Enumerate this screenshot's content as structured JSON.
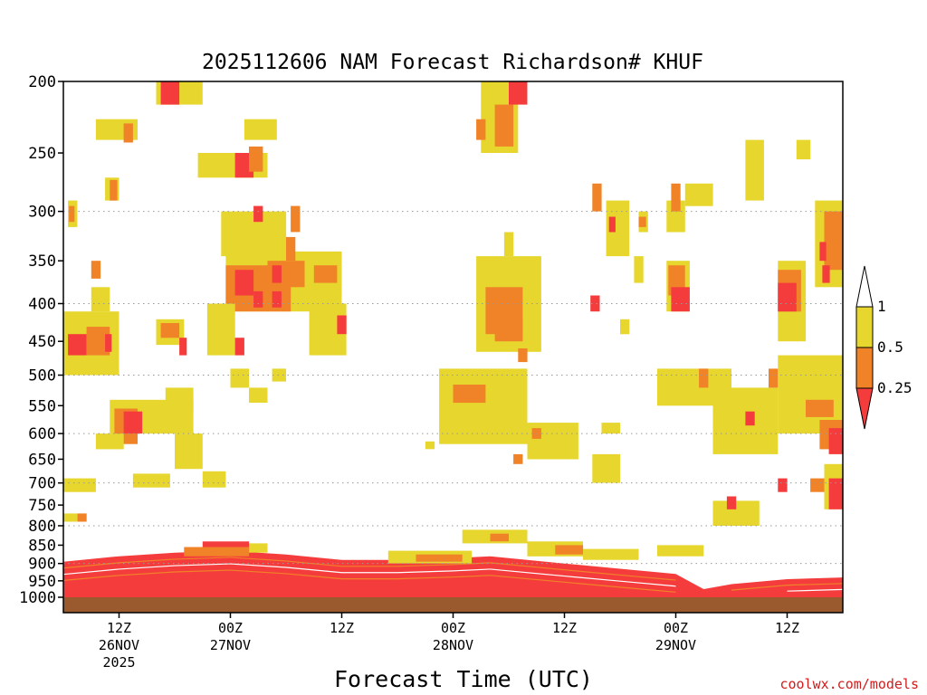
{
  "chart_data": {
    "type": "heatmap",
    "title": "2025112606 NAM Forecast Richardson# KHUF",
    "xlabel": "Forecast Time (UTC)",
    "ylabel": "",
    "credit": "coolwx.com/models",
    "y_axis": {
      "scale": "log-pressure (hPa), inverted",
      "range": [
        1000,
        200
      ],
      "ticks": [
        "200",
        "250",
        "300",
        "350",
        "400",
        "450",
        "500",
        "550",
        "600",
        "650",
        "700",
        "750",
        "800",
        "850",
        "900",
        "950",
        "1000"
      ]
    },
    "x_axis": {
      "range_hours": [
        0,
        84
      ],
      "ticks": [
        {
          "label": "12Z",
          "date": "26NOV",
          "year": "2025",
          "hour": 6
        },
        {
          "label": "00Z",
          "date": "27NOV",
          "year": "",
          "hour": 18
        },
        {
          "label": "12Z",
          "date": "",
          "year": "",
          "hour": 30
        },
        {
          "label": "00Z",
          "date": "28NOV",
          "year": "",
          "hour": 42
        },
        {
          "label": "12Z",
          "date": "",
          "year": "",
          "hour": 54
        },
        {
          "label": "00Z",
          "date": "29NOV",
          "year": "",
          "hour": 66
        },
        {
          "label": "12Z",
          "date": "",
          "year": "",
          "hour": 78
        }
      ]
    },
    "gridlines_dotted_at": [
      300,
      400,
      500,
      600,
      700,
      800,
      900
    ],
    "colorbar": {
      "labels": [
        "1",
        "0.5",
        "0.25"
      ],
      "bins": [
        {
          "range": "0.5-1",
          "color": "#e6d62e"
        },
        {
          "range": "0.25-0.5",
          "color": "#f08228"
        },
        {
          "range": "<0.25",
          "color": "#f53c3c"
        }
      ],
      "extend_high": "#ffffff",
      "extend_low": "#f53c3c"
    },
    "ground_color": "#9a5a2e",
    "colors": {
      "yellow": "#e6d62e",
      "orange": "#f08228",
      "red": "#f53c3c"
    },
    "blobs": [
      {
        "c": "y",
        "t0": 10,
        "t1": 15,
        "p0": 200,
        "p1": 215
      },
      {
        "c": "r",
        "t0": 10.5,
        "t1": 12.5,
        "p0": 200,
        "p1": 215
      },
      {
        "c": "y",
        "t0": 3.5,
        "t1": 8,
        "p0": 225,
        "p1": 240
      },
      {
        "c": "o",
        "t0": 6.5,
        "t1": 7.5,
        "p0": 228,
        "p1": 242
      },
      {
        "c": "y",
        "t0": 14.5,
        "t1": 22,
        "p0": 250,
        "p1": 270
      },
      {
        "c": "r",
        "t0": 18.5,
        "t1": 20.5,
        "p0": 250,
        "p1": 270
      },
      {
        "c": "o",
        "t0": 20,
        "t1": 21.5,
        "p0": 245,
        "p1": 265
      },
      {
        "c": "y",
        "t0": 19.5,
        "t1": 23,
        "p0": 225,
        "p1": 240
      },
      {
        "c": "y",
        "t0": 4.5,
        "t1": 6,
        "p0": 270,
        "p1": 290
      },
      {
        "c": "o",
        "t0": 5,
        "t1": 5.8,
        "p0": 272,
        "p1": 290
      },
      {
        "c": "y",
        "t0": 0.5,
        "t1": 1.5,
        "p0": 290,
        "p1": 315
      },
      {
        "c": "o",
        "t0": 0.6,
        "t1": 1.2,
        "p0": 295,
        "p1": 310
      },
      {
        "c": "y",
        "t0": 17,
        "t1": 24,
        "p0": 300,
        "p1": 345
      },
      {
        "c": "r",
        "t0": 20.5,
        "t1": 21.5,
        "p0": 295,
        "p1": 310
      },
      {
        "c": "o",
        "t0": 24.5,
        "t1": 25.5,
        "p0": 295,
        "p1": 320
      },
      {
        "c": "y",
        "t0": 17.5,
        "t1": 30,
        "p0": 340,
        "p1": 410
      },
      {
        "c": "o",
        "t0": 17.5,
        "t1": 24.5,
        "p0": 355,
        "p1": 410
      },
      {
        "c": "r",
        "t0": 18.5,
        "t1": 20.5,
        "p0": 360,
        "p1": 390
      },
      {
        "c": "o",
        "t0": 22,
        "t1": 26,
        "p0": 350,
        "p1": 380
      },
      {
        "c": "r",
        "t0": 22.5,
        "t1": 23.5,
        "p0": 355,
        "p1": 375
      },
      {
        "c": "o",
        "t0": 27,
        "t1": 29.5,
        "p0": 355,
        "p1": 375
      },
      {
        "c": "r",
        "t0": 20.5,
        "t1": 21.5,
        "p0": 385,
        "p1": 405
      },
      {
        "c": "r",
        "t0": 22.5,
        "t1": 23.5,
        "p0": 385,
        "p1": 405
      },
      {
        "c": "o",
        "t0": 24,
        "t1": 25,
        "p0": 325,
        "p1": 350
      },
      {
        "c": "y",
        "t0": 26.5,
        "t1": 30.5,
        "p0": 400,
        "p1": 470
      },
      {
        "c": "r",
        "t0": 29.5,
        "t1": 30.5,
        "p0": 415,
        "p1": 440
      },
      {
        "c": "o",
        "t0": 3,
        "t1": 4,
        "p0": 350,
        "p1": 370
      },
      {
        "c": "y",
        "t0": 3,
        "t1": 5,
        "p0": 380,
        "p1": 410
      },
      {
        "c": "y",
        "t0": 0,
        "t1": 6,
        "p0": 410,
        "p1": 500
      },
      {
        "c": "r",
        "t0": 0.5,
        "t1": 2.5,
        "p0": 440,
        "p1": 470
      },
      {
        "c": "o",
        "t0": 2.5,
        "t1": 5,
        "p0": 430,
        "p1": 470
      },
      {
        "c": "r",
        "t0": 4.5,
        "t1": 5.2,
        "p0": 440,
        "p1": 465
      },
      {
        "c": "y",
        "t0": 10,
        "t1": 13,
        "p0": 420,
        "p1": 455
      },
      {
        "c": "o",
        "t0": 10.5,
        "t1": 12.5,
        "p0": 425,
        "p1": 445
      },
      {
        "c": "r",
        "t0": 12.5,
        "t1": 13.3,
        "p0": 445,
        "p1": 470
      },
      {
        "c": "y",
        "t0": 15.5,
        "t1": 18.5,
        "p0": 400,
        "p1": 470
      },
      {
        "c": "r",
        "t0": 18.5,
        "t1": 19.5,
        "p0": 445,
        "p1": 470
      },
      {
        "c": "y",
        "t0": 18,
        "t1": 20,
        "p0": 490,
        "p1": 520
      },
      {
        "c": "y",
        "t0": 20,
        "t1": 22,
        "p0": 520,
        "p1": 545
      },
      {
        "c": "y",
        "t0": 22.5,
        "t1": 24,
        "p0": 490,
        "p1": 510
      },
      {
        "c": "y",
        "t0": 5,
        "t1": 14,
        "p0": 540,
        "p1": 600
      },
      {
        "c": "o",
        "t0": 5.5,
        "t1": 8,
        "p0": 555,
        "p1": 620
      },
      {
        "c": "r",
        "t0": 6.5,
        "t1": 8.5,
        "p0": 560,
        "p1": 600
      },
      {
        "c": "y",
        "t0": 11,
        "t1": 14,
        "p0": 520,
        "p1": 560
      },
      {
        "c": "y",
        "t0": 12,
        "t1": 15,
        "p0": 600,
        "p1": 670
      },
      {
        "c": "y",
        "t0": 3.5,
        "t1": 6.5,
        "p0": 600,
        "p1": 630
      },
      {
        "c": "y",
        "t0": 7.5,
        "t1": 11.5,
        "p0": 680,
        "p1": 710
      },
      {
        "c": "y",
        "t0": 15,
        "t1": 17.5,
        "p0": 675,
        "p1": 710
      },
      {
        "c": "y",
        "t0": 0,
        "t1": 3.5,
        "p0": 690,
        "p1": 720
      },
      {
        "c": "o",
        "t0": 1.5,
        "t1": 2.5,
        "p0": 770,
        "p1": 790
      },
      {
        "c": "y",
        "t0": 0,
        "t1": 1.5,
        "p0": 770,
        "p1": 790
      },
      {
        "c": "y",
        "t0": 45,
        "t1": 49,
        "p0": 200,
        "p1": 250
      },
      {
        "c": "o",
        "t0": 46.5,
        "t1": 48.5,
        "p0": 215,
        "p1": 245
      },
      {
        "c": "r",
        "t0": 48,
        "t1": 50,
        "p0": 200,
        "p1": 215
      },
      {
        "c": "o",
        "t0": 44.5,
        "t1": 45.5,
        "p0": 225,
        "p1": 240
      },
      {
        "c": "y",
        "t0": 44.5,
        "t1": 51.5,
        "p0": 345,
        "p1": 465
      },
      {
        "c": "o",
        "t0": 45.5,
        "t1": 49.5,
        "p0": 380,
        "p1": 440
      },
      {
        "c": "o",
        "t0": 46.5,
        "t1": 49.5,
        "p0": 420,
        "p1": 450
      },
      {
        "c": "o",
        "t0": 49,
        "t1": 50,
        "p0": 460,
        "p1": 480
      },
      {
        "c": "y",
        "t0": 47.5,
        "t1": 48.5,
        "p0": 320,
        "p1": 345
      },
      {
        "c": "y",
        "t0": 40.5,
        "t1": 50,
        "p0": 490,
        "p1": 620
      },
      {
        "c": "o",
        "t0": 42,
        "t1": 45.5,
        "p0": 515,
        "p1": 545
      },
      {
        "c": "y",
        "t0": 50,
        "t1": 55.5,
        "p0": 580,
        "p1": 650
      },
      {
        "c": "o",
        "t0": 50.5,
        "t1": 51.5,
        "p0": 590,
        "p1": 610
      },
      {
        "c": "o",
        "t0": 48.5,
        "t1": 49.5,
        "p0": 640,
        "p1": 660
      },
      {
        "c": "y",
        "t0": 39,
        "t1": 40,
        "p0": 615,
        "p1": 630
      },
      {
        "c": "y",
        "t0": 57,
        "t1": 60,
        "p0": 640,
        "p1": 700
      },
      {
        "c": "y",
        "t0": 58,
        "t1": 60,
        "p0": 580,
        "p1": 600
      },
      {
        "c": "o",
        "t0": 57,
        "t1": 58,
        "p0": 275,
        "p1": 300
      },
      {
        "c": "y",
        "t0": 58.5,
        "t1": 61,
        "p0": 290,
        "p1": 345
      },
      {
        "c": "r",
        "t0": 58.8,
        "t1": 59.5,
        "p0": 305,
        "p1": 320
      },
      {
        "c": "y",
        "t0": 62,
        "t1": 63,
        "p0": 300,
        "p1": 320
      },
      {
        "c": "o",
        "t0": 62,
        "t1": 62.8,
        "p0": 305,
        "p1": 315
      },
      {
        "c": "y",
        "t0": 61.5,
        "t1": 62.5,
        "p0": 345,
        "p1": 375
      },
      {
        "c": "r",
        "t0": 56.8,
        "t1": 57.8,
        "p0": 390,
        "p1": 410
      },
      {
        "c": "y",
        "t0": 60,
        "t1": 61,
        "p0": 420,
        "p1": 440
      },
      {
        "c": "y",
        "t0": 65,
        "t1": 67,
        "p0": 290,
        "p1": 320
      },
      {
        "c": "o",
        "t0": 65.5,
        "t1": 66.5,
        "p0": 275,
        "p1": 300
      },
      {
        "c": "y",
        "t0": 67,
        "t1": 70,
        "p0": 275,
        "p1": 295
      },
      {
        "c": "y",
        "t0": 65,
        "t1": 67.5,
        "p0": 350,
        "p1": 410
      },
      {
        "c": "o",
        "t0": 65.2,
        "t1": 67,
        "p0": 355,
        "p1": 390
      },
      {
        "c": "r",
        "t0": 65.5,
        "t1": 67.5,
        "p0": 380,
        "p1": 410
      },
      {
        "c": "y",
        "t0": 64,
        "t1": 72,
        "p0": 490,
        "p1": 550
      },
      {
        "c": "o",
        "t0": 68.5,
        "t1": 69.5,
        "p0": 490,
        "p1": 520
      },
      {
        "c": "y",
        "t0": 70,
        "t1": 77,
        "p0": 520,
        "p1": 640
      },
      {
        "c": "r",
        "t0": 73.5,
        "t1": 74.5,
        "p0": 560,
        "p1": 585
      },
      {
        "c": "o",
        "t0": 76,
        "t1": 77,
        "p0": 490,
        "p1": 520
      },
      {
        "c": "y",
        "t0": 77,
        "t1": 84,
        "p0": 470,
        "p1": 600
      },
      {
        "c": "o",
        "t0": 81.5,
        "t1": 84,
        "p0": 575,
        "p1": 630
      },
      {
        "c": "r",
        "t0": 82.5,
        "t1": 84,
        "p0": 590,
        "p1": 640
      },
      {
        "c": "o",
        "t0": 80,
        "t1": 83,
        "p0": 540,
        "p1": 570
      },
      {
        "c": "y",
        "t0": 77,
        "t1": 80,
        "p0": 350,
        "p1": 450
      },
      {
        "c": "o",
        "t0": 77,
        "t1": 79.5,
        "p0": 360,
        "p1": 410
      },
      {
        "c": "r",
        "t0": 77,
        "t1": 79,
        "p0": 375,
        "p1": 410
      },
      {
        "c": "y",
        "t0": 81,
        "t1": 84,
        "p0": 290,
        "p1": 380
      },
      {
        "c": "o",
        "t0": 82,
        "t1": 84,
        "p0": 300,
        "p1": 360
      },
      {
        "c": "r",
        "t0": 81.5,
        "t1": 82.2,
        "p0": 330,
        "p1": 350
      },
      {
        "c": "r",
        "t0": 81.8,
        "t1": 82.6,
        "p0": 355,
        "p1": 375
      },
      {
        "c": "y",
        "t0": 73.5,
        "t1": 75.5,
        "p0": 240,
        "p1": 290
      },
      {
        "c": "y",
        "t0": 79,
        "t1": 80.5,
        "p0": 240,
        "p1": 255
      },
      {
        "c": "y",
        "t0": 82,
        "t1": 84,
        "p0": 660,
        "p1": 760
      },
      {
        "c": "r",
        "t0": 82.5,
        "t1": 84,
        "p0": 690,
        "p1": 760
      },
      {
        "c": "o",
        "t0": 80.5,
        "t1": 82,
        "p0": 690,
        "p1": 720
      },
      {
        "c": "y",
        "t0": 70,
        "t1": 75,
        "p0": 740,
        "p1": 800
      },
      {
        "c": "r",
        "t0": 71.5,
        "t1": 72.5,
        "p0": 730,
        "p1": 760
      },
      {
        "c": "r",
        "t0": 77,
        "t1": 78,
        "p0": 690,
        "p1": 720
      },
      {
        "c": "y",
        "t0": 43,
        "t1": 50,
        "p0": 810,
        "p1": 845
      },
      {
        "c": "o",
        "t0": 46,
        "t1": 48,
        "p0": 820,
        "p1": 840
      },
      {
        "c": "y",
        "t0": 50,
        "t1": 56,
        "p0": 840,
        "p1": 880
      },
      {
        "c": "o",
        "t0": 53,
        "t1": 56,
        "p0": 850,
        "p1": 875
      },
      {
        "c": "y",
        "t0": 56,
        "t1": 62,
        "p0": 860,
        "p1": 890
      },
      {
        "c": "y",
        "t0": 64,
        "t1": 69,
        "p0": 850,
        "p1": 880
      },
      {
        "c": "y",
        "t0": 18,
        "t1": 22,
        "p0": 845,
        "p1": 870
      },
      {
        "c": "r",
        "t0": 15,
        "t1": 20,
        "p0": 840,
        "p1": 865
      },
      {
        "c": "o",
        "t0": 13,
        "t1": 20,
        "p0": 855,
        "p1": 880
      },
      {
        "c": "y",
        "t0": 35,
        "t1": 44,
        "p0": 865,
        "p1": 900
      },
      {
        "c": "o",
        "t0": 38,
        "t1": 43,
        "p0": 875,
        "p1": 895
      }
    ],
    "boundary_layer": {
      "top_pressure_by_hour": [
        [
          0,
          895
        ],
        [
          6,
          880
        ],
        [
          12,
          870
        ],
        [
          18,
          865
        ],
        [
          24,
          875
        ],
        [
          30,
          890
        ],
        [
          36,
          890
        ],
        [
          42,
          885
        ],
        [
          46,
          880
        ],
        [
          54,
          900
        ],
        [
          60,
          915
        ],
        [
          66,
          930
        ],
        [
          69,
          975
        ],
        [
          72,
          960
        ],
        [
          78,
          945
        ],
        [
          84,
          940
        ]
      ]
    }
  }
}
